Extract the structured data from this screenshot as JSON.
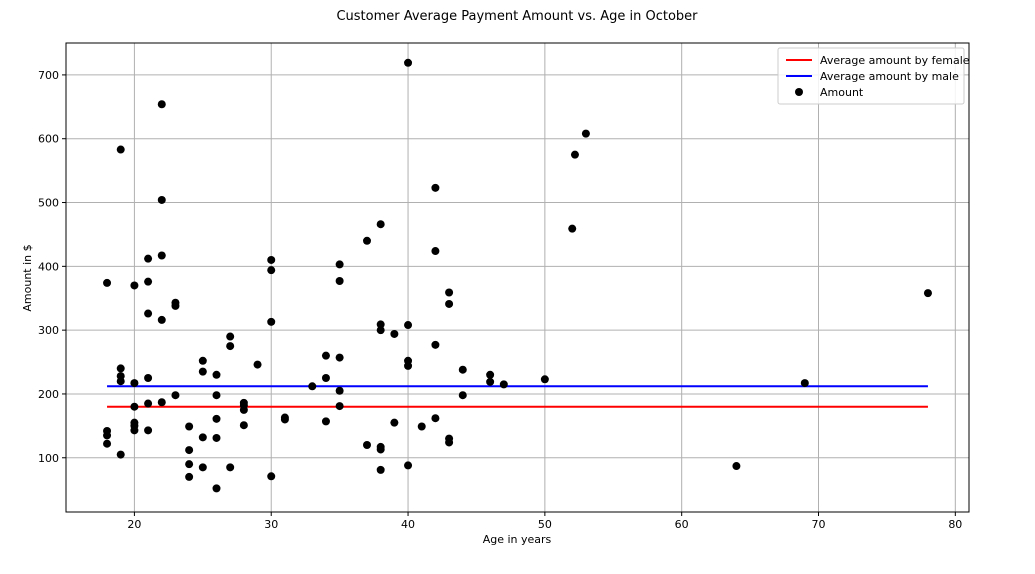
{
  "chart_data": {
    "type": "scatter",
    "title": "Customer Average Payment Amount vs. Age in October",
    "xlabel": "Age in years",
    "ylabel": "Amount in $",
    "xlim": [
      15,
      81
    ],
    "ylim": [
      15,
      750
    ],
    "xticks": [
      20,
      30,
      40,
      50,
      60,
      70,
      80
    ],
    "yticks": [
      100,
      200,
      300,
      400,
      500,
      600,
      700
    ],
    "grid": true,
    "legend_position": "top-right",
    "lines": [
      {
        "name": "Average amount by female",
        "color": "#ff0000",
        "x": [
          18,
          78
        ],
        "y": [
          180,
          180
        ]
      },
      {
        "name": "Average amount by male",
        "color": "#0000ff",
        "x": [
          18,
          78
        ],
        "y": [
          212,
          212
        ]
      }
    ],
    "scatter": {
      "name": "Amount",
      "color": "#000000",
      "points": [
        [
          18,
          374
        ],
        [
          18,
          142
        ],
        [
          18,
          135
        ],
        [
          18,
          122
        ],
        [
          19,
          583
        ],
        [
          19,
          240
        ],
        [
          19,
          228
        ],
        [
          19,
          220
        ],
        [
          19,
          105
        ],
        [
          20,
          370
        ],
        [
          20,
          217
        ],
        [
          20,
          180
        ],
        [
          20,
          155
        ],
        [
          20,
          150
        ],
        [
          20,
          143
        ],
        [
          21,
          412
        ],
        [
          21,
          376
        ],
        [
          21,
          326
        ],
        [
          21,
          225
        ],
        [
          21,
          185
        ],
        [
          21,
          143
        ],
        [
          22,
          654
        ],
        [
          22,
          504
        ],
        [
          22,
          417
        ],
        [
          22,
          316
        ],
        [
          22,
          187
        ],
        [
          23,
          343
        ],
        [
          23,
          338
        ],
        [
          23,
          198
        ],
        [
          24,
          149
        ],
        [
          24,
          112
        ],
        [
          24,
          90
        ],
        [
          24,
          70
        ],
        [
          25,
          252
        ],
        [
          25,
          235
        ],
        [
          25,
          132
        ],
        [
          25,
          85
        ],
        [
          26,
          230
        ],
        [
          26,
          198
        ],
        [
          26,
          161
        ],
        [
          26,
          131
        ],
        [
          26,
          52
        ],
        [
          27,
          290
        ],
        [
          27,
          275
        ],
        [
          27,
          85
        ],
        [
          28,
          186
        ],
        [
          28,
          182
        ],
        [
          28,
          175
        ],
        [
          28,
          151
        ],
        [
          29,
          246
        ],
        [
          30,
          410
        ],
        [
          30,
          394
        ],
        [
          30,
          313
        ],
        [
          30,
          71
        ],
        [
          31,
          163
        ],
        [
          31,
          160
        ],
        [
          33,
          212
        ],
        [
          34,
          260
        ],
        [
          34,
          225
        ],
        [
          34,
          157
        ],
        [
          35,
          403
        ],
        [
          35,
          377
        ],
        [
          35,
          257
        ],
        [
          35,
          205
        ],
        [
          35,
          181
        ],
        [
          37,
          440
        ],
        [
          37,
          120
        ],
        [
          38,
          466
        ],
        [
          38,
          309
        ],
        [
          38,
          300
        ],
        [
          38,
          117
        ],
        [
          38,
          113
        ],
        [
          38,
          81
        ],
        [
          39,
          294
        ],
        [
          39,
          155
        ],
        [
          40,
          719
        ],
        [
          40,
          308
        ],
        [
          40,
          252
        ],
        [
          40,
          244
        ],
        [
          40,
          88
        ],
        [
          41,
          149
        ],
        [
          42,
          523
        ],
        [
          42,
          424
        ],
        [
          42,
          277
        ],
        [
          42,
          162
        ],
        [
          43,
          359
        ],
        [
          43,
          341
        ],
        [
          43,
          130
        ],
        [
          43,
          124
        ],
        [
          44,
          238
        ],
        [
          44,
          198
        ],
        [
          46,
          230
        ],
        [
          46,
          219
        ],
        [
          47,
          215
        ],
        [
          50,
          223
        ],
        [
          52,
          459
        ],
        [
          52.2,
          575
        ],
        [
          53,
          608
        ],
        [
          64,
          87
        ],
        [
          69,
          217
        ],
        [
          78,
          358
        ]
      ]
    }
  }
}
